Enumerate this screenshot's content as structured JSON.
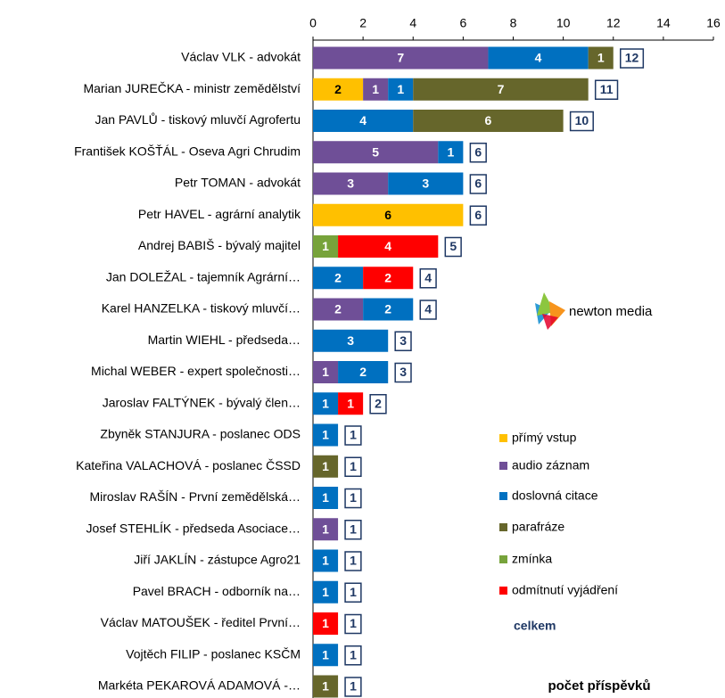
{
  "chart_data": {
    "type": "stacked-bar-horizontal",
    "categories": [
      "Václav VLK - advokát",
      "Marian JUREČKA - ministr zemědělství",
      "Jan PAVLŮ - tiskový mluvčí Agrofertu",
      "František KOŠŤÁL - Oseva Agri Chrudim",
      "Petr TOMAN - advokát",
      "Petr HAVEL - agrární analytik",
      "Andrej BABIŠ - bývalý majitel",
      "Jan DOLEŽAL - tajemník Agrární…",
      "Karel HANZELKA - tiskový mluvčí…",
      "Martin WIEHL - předseda…",
      "Michal WEBER - expert společnosti…",
      "Jaroslav FALTÝNEK - bývalý člen…",
      "Zbyněk STANJURA - poslanec ODS",
      "Kateřina VALACHOVÁ - poslanec ČSSD",
      "Miroslav RAŠÍN - První zemědělská…",
      "Josef STEHLÍK - předseda Asociace…",
      "Jiří JAKLÍN - zástupce Agro21",
      "Pavel BRACH - odborník na…",
      "Václav MATOUŠEK - ředitel První…",
      "Vojtěch FILIP - poslanec KSČM",
      "Markéta PEKAROVÁ ADAMOVÁ -…"
    ],
    "series": [
      {
        "name": "přímý vstup",
        "color": "#ffc000",
        "values": [
          null,
          2,
          null,
          null,
          null,
          6,
          null,
          null,
          null,
          null,
          null,
          null,
          null,
          null,
          null,
          null,
          null,
          null,
          null,
          null,
          null
        ]
      },
      {
        "name": "audio záznam",
        "color": "#6f4f97",
        "values": [
          7,
          1,
          null,
          5,
          3,
          null,
          null,
          null,
          2,
          null,
          1,
          null,
          null,
          null,
          null,
          1,
          null,
          null,
          null,
          null,
          null
        ]
      },
      {
        "name": "doslovná citace",
        "color": "#0070c0",
        "values": [
          4,
          1,
          4,
          1,
          3,
          null,
          null,
          2,
          2,
          3,
          2,
          1,
          1,
          null,
          1,
          null,
          1,
          1,
          null,
          1,
          null
        ]
      },
      {
        "name": "parafráze",
        "color": "#66662b",
        "values": [
          1,
          7,
          6,
          null,
          null,
          null,
          null,
          null,
          null,
          null,
          null,
          null,
          null,
          1,
          null,
          null,
          null,
          null,
          null,
          null,
          1
        ]
      },
      {
        "name": "zmínka",
        "color": "#77a33b",
        "values": [
          null,
          null,
          null,
          null,
          null,
          null,
          1,
          null,
          null,
          null,
          null,
          null,
          null,
          null,
          null,
          null,
          null,
          null,
          null,
          null,
          null
        ]
      },
      {
        "name": "odmítnutí vyjádření",
        "color": "#ff0000",
        "values": [
          null,
          null,
          null,
          null,
          null,
          null,
          4,
          2,
          null,
          null,
          null,
          1,
          null,
          null,
          null,
          null,
          null,
          null,
          1,
          null,
          null
        ]
      }
    ],
    "totals": {
      "name": "celkem",
      "color": "#1f3864",
      "values": [
        12,
        11,
        10,
        6,
        6,
        6,
        5,
        4,
        4,
        3,
        3,
        2,
        1,
        1,
        1,
        1,
        1,
        1,
        1,
        1,
        1
      ]
    },
    "xlim": [
      0,
      16
    ],
    "xticks": [
      0,
      2,
      4,
      6,
      8,
      10,
      12,
      14,
      16
    ],
    "x_axis_label": "počet příspěvků",
    "logo_text": "newton media"
  }
}
